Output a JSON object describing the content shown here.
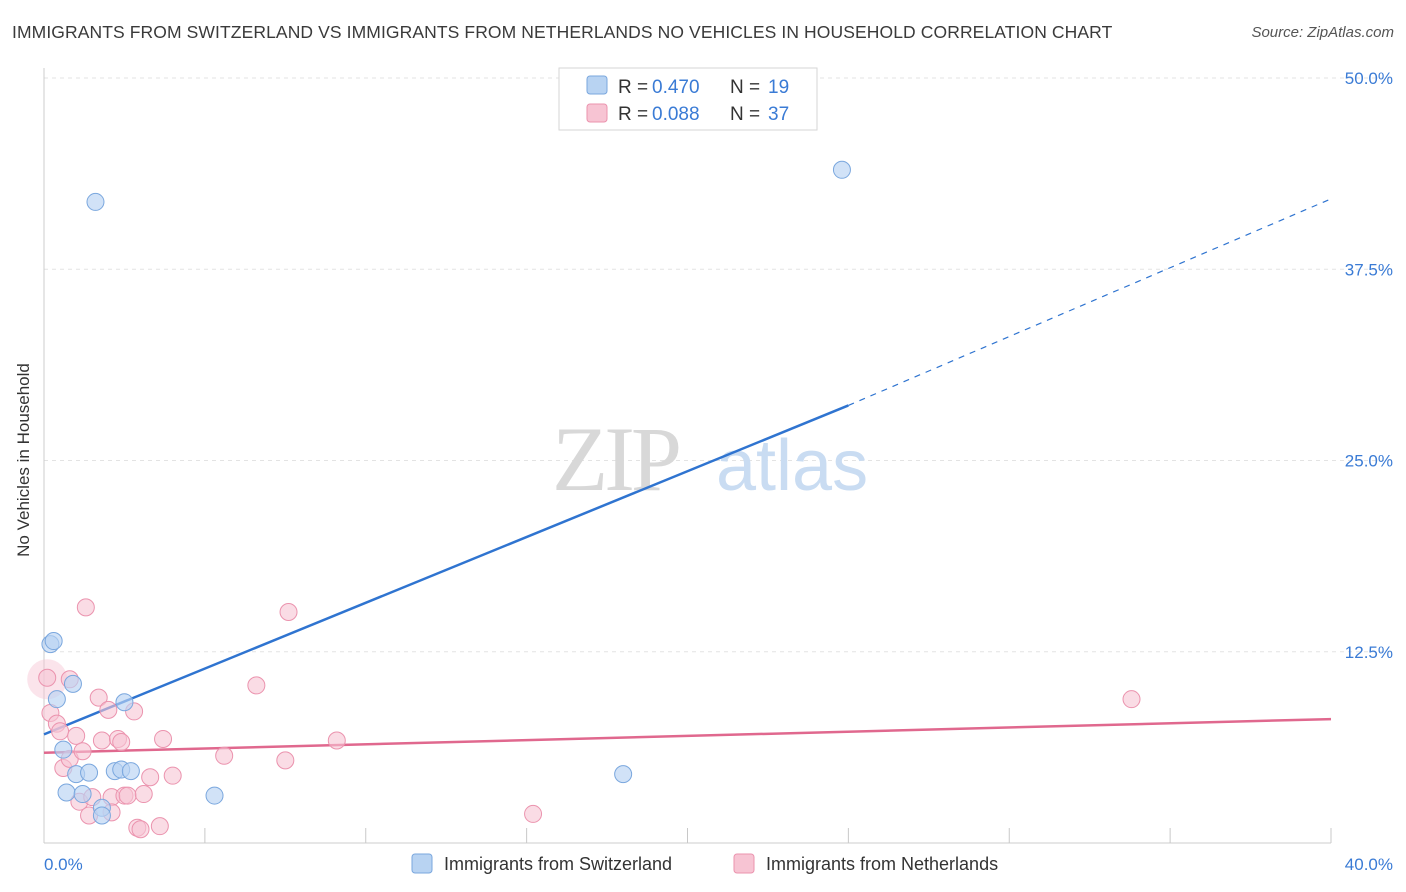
{
  "header": {
    "title": "IMMIGRANTS FROM SWITZERLAND VS IMMIGRANTS FROM NETHERLANDS NO VEHICLES IN HOUSEHOLD CORRELATION CHART",
    "source": "Source: ZipAtlas.com"
  },
  "watermark": {
    "zip": "ZIP",
    "atlas": "atlas"
  },
  "legend_box": {
    "rows": [
      {
        "r_label": "R = ",
        "r_value": "0.470",
        "n_label": "N = ",
        "n_value": "19"
      },
      {
        "r_label": "R = ",
        "r_value": "0.088",
        "n_label": "N = ",
        "n_value": "37"
      }
    ]
  },
  "colors": {
    "blue_fill": "#b8d3f2",
    "blue_stroke": "#7aa7de",
    "blue_line": "#2f74d0",
    "pink_fill": "#f7c4d3",
    "pink_stroke": "#eb93ae",
    "pink_line": "#e0688e",
    "accent_text": "#3a7bd5",
    "grid": "#e3e3e3"
  },
  "chart_data": {
    "type": "scatter",
    "title": "IMMIGRANTS FROM SWITZERLAND VS IMMIGRANTS FROM NETHERLANDS NO VEHICLES IN HOUSEHOLD CORRELATION CHART",
    "xlabel": "",
    "ylabel": "No Vehicles in Household",
    "xlim": [
      0,
      40
    ],
    "ylim": [
      0,
      50
    ],
    "x_tick_labels": [
      "0.0%",
      "40.0%"
    ],
    "y_ticks": [
      12.5,
      25.0,
      37.5,
      50.0
    ],
    "y_tick_labels": [
      "12.5%",
      "25.0%",
      "37.5%",
      "50.0%"
    ],
    "grid": true,
    "legend_position": "bottom-center",
    "series": [
      {
        "name": "Immigrants from Switzerland",
        "color": "blue",
        "r": 0.47,
        "n": 19,
        "trend": {
          "x": [
            0,
            25
          ],
          "y": [
            7.1,
            28.6
          ],
          "dashed_extension": {
            "x": [
              25,
              40
            ],
            "y": [
              28.6,
              42.1
            ]
          }
        },
        "points": [
          {
            "x": 0.2,
            "y": 13.0
          },
          {
            "x": 0.3,
            "y": 13.2
          },
          {
            "x": 0.4,
            "y": 9.4
          },
          {
            "x": 0.6,
            "y": 6.1
          },
          {
            "x": 0.7,
            "y": 3.3
          },
          {
            "x": 0.9,
            "y": 10.4
          },
          {
            "x": 1.0,
            "y": 4.5
          },
          {
            "x": 1.2,
            "y": 3.2
          },
          {
            "x": 1.4,
            "y": 4.6
          },
          {
            "x": 1.6,
            "y": 41.9
          },
          {
            "x": 1.8,
            "y": 2.3
          },
          {
            "x": 1.8,
            "y": 1.8
          },
          {
            "x": 2.2,
            "y": 4.7
          },
          {
            "x": 2.4,
            "y": 4.8
          },
          {
            "x": 2.5,
            "y": 9.2
          },
          {
            "x": 2.7,
            "y": 4.7
          },
          {
            "x": 5.3,
            "y": 3.1
          },
          {
            "x": 18.0,
            "y": 4.5
          },
          {
            "x": 24.8,
            "y": 44.0
          }
        ]
      },
      {
        "name": "Immigrants from Netherlands",
        "color": "pink",
        "r": 0.088,
        "n": 37,
        "trend": {
          "x": [
            0,
            40
          ],
          "y": [
            5.9,
            8.1
          ]
        },
        "points": [
          {
            "x": 0.1,
            "y": 10.8
          },
          {
            "x": 0.2,
            "y": 8.5
          },
          {
            "x": 0.4,
            "y": 7.8
          },
          {
            "x": 0.5,
            "y": 7.3
          },
          {
            "x": 0.6,
            "y": 4.9
          },
          {
            "x": 0.8,
            "y": 10.7
          },
          {
            "x": 0.8,
            "y": 5.5
          },
          {
            "x": 1.0,
            "y": 7.0
          },
          {
            "x": 1.1,
            "y": 2.7
          },
          {
            "x": 1.2,
            "y": 6.0
          },
          {
            "x": 1.3,
            "y": 15.4
          },
          {
            "x": 1.4,
            "y": 1.8
          },
          {
            "x": 1.5,
            "y": 3.0
          },
          {
            "x": 1.7,
            "y": 9.5
          },
          {
            "x": 1.8,
            "y": 6.7
          },
          {
            "x": 2.0,
            "y": 8.7
          },
          {
            "x": 2.1,
            "y": 3.0
          },
          {
            "x": 2.1,
            "y": 2.0
          },
          {
            "x": 2.3,
            "y": 6.8
          },
          {
            "x": 2.4,
            "y": 6.6
          },
          {
            "x": 2.5,
            "y": 3.1
          },
          {
            "x": 2.6,
            "y": 3.1
          },
          {
            "x": 2.8,
            "y": 8.6
          },
          {
            "x": 2.9,
            "y": 1.0
          },
          {
            "x": 3.0,
            "y": 0.9
          },
          {
            "x": 3.1,
            "y": 3.2
          },
          {
            "x": 3.3,
            "y": 4.3
          },
          {
            "x": 3.7,
            "y": 6.8
          },
          {
            "x": 3.6,
            "y": 1.1
          },
          {
            "x": 4.0,
            "y": 4.4
          },
          {
            "x": 5.6,
            "y": 5.7
          },
          {
            "x": 6.6,
            "y": 10.3
          },
          {
            "x": 7.5,
            "y": 5.4
          },
          {
            "x": 7.6,
            "y": 15.1
          },
          {
            "x": 9.1,
            "y": 6.7
          },
          {
            "x": 15.2,
            "y": 1.9
          },
          {
            "x": 33.8,
            "y": 9.4
          }
        ]
      }
    ]
  }
}
